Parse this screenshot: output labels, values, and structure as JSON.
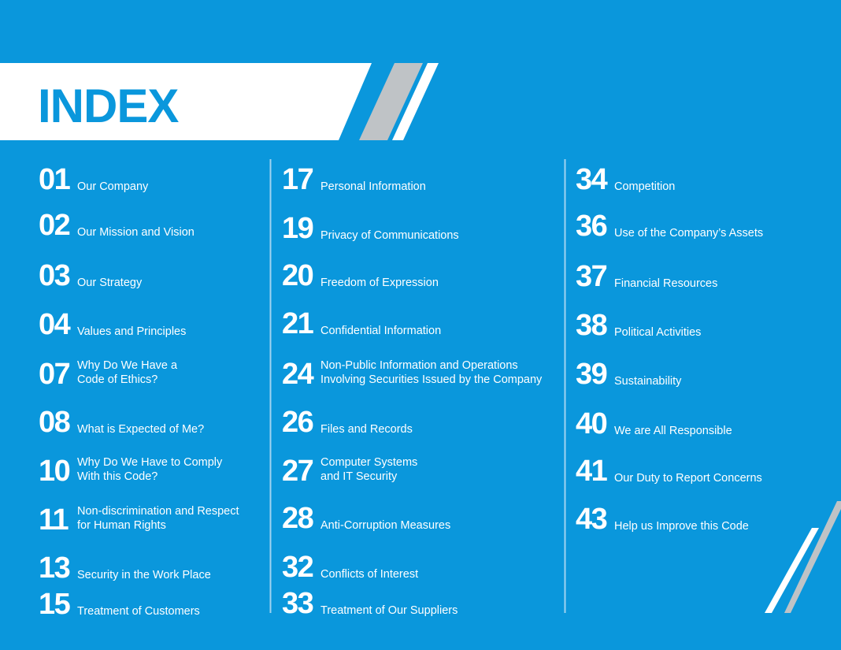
{
  "header": {
    "title": "INDEX"
  },
  "columns": [
    {
      "entries": [
        {
          "number": "01",
          "lines": [
            "Our Company"
          ]
        },
        {
          "number": "02",
          "lines": [
            "Our Mission and Vision"
          ]
        },
        {
          "number": "03",
          "lines": [
            "Our Strategy"
          ]
        },
        {
          "number": "04",
          "lines": [
            "Values and Principles"
          ]
        },
        {
          "number": "07",
          "lines": [
            "Why Do We Have a",
            "Code of Ethics?"
          ]
        },
        {
          "number": "08",
          "lines": [
            "What is Expected of Me?"
          ]
        },
        {
          "number": "10",
          "lines": [
            "Why Do We Have to Comply",
            "With this Code?"
          ]
        },
        {
          "number": "11",
          "lines": [
            "Non-discrimination and Respect",
            "for Human Rights"
          ]
        },
        {
          "number": "13",
          "lines": [
            "Security in the Work Place"
          ]
        },
        {
          "number": "15",
          "lines": [
            "Treatment of Customers"
          ]
        }
      ]
    },
    {
      "entries": [
        {
          "number": "17",
          "lines": [
            "Personal Information"
          ]
        },
        {
          "number": "19",
          "lines": [
            "Privacy of Communications"
          ]
        },
        {
          "number": "20",
          "lines": [
            "Freedom of Expression"
          ]
        },
        {
          "number": "21",
          "lines": [
            "Confidential Information"
          ]
        },
        {
          "number": "24",
          "lines": [
            "Non-Public Information and Operations",
            "Involving Securities Issued by the Company"
          ]
        },
        {
          "number": "26",
          "lines": [
            "Files and Records"
          ]
        },
        {
          "number": "27",
          "lines": [
            "Computer Systems",
            "and IT Security"
          ]
        },
        {
          "number": "28",
          "lines": [
            "Anti-Corruption Measures"
          ]
        },
        {
          "number": "32",
          "lines": [
            "Conflicts of Interest"
          ]
        },
        {
          "number": "33",
          "lines": [
            "Treatment of Our Suppliers"
          ]
        }
      ]
    },
    {
      "entries": [
        {
          "number": "34",
          "lines": [
            "Competition"
          ]
        },
        {
          "number": "36",
          "lines": [
            "Use of the Company’s Assets"
          ]
        },
        {
          "number": "37",
          "lines": [
            "Financial Resources"
          ]
        },
        {
          "number": "38",
          "lines": [
            "Political Activities"
          ]
        },
        {
          "number": "39",
          "lines": [
            "Sustainability"
          ]
        },
        {
          "number": "40",
          "lines": [
            "We are All Responsible"
          ]
        },
        {
          "number": "41",
          "lines": [
            "Our Duty to Report Concerns"
          ]
        },
        {
          "number": "43",
          "lines": [
            "Help us Improve this Code"
          ]
        }
      ]
    }
  ]
}
